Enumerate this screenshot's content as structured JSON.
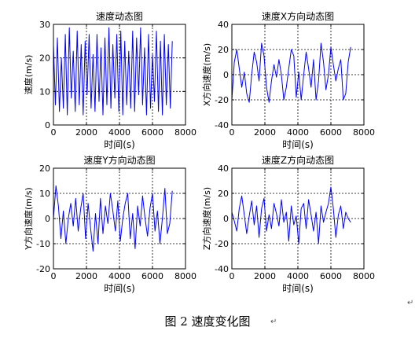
{
  "figure": {
    "caption": "图 2  速度变化图",
    "paragraph_mark": "↵"
  },
  "chart_data": [
    {
      "type": "line",
      "title": "速度动态图",
      "xlabel": "时间(s)",
      "ylabel": "速度(m/s)",
      "xlim": [
        0,
        8000
      ],
      "ylim": [
        0,
        30
      ],
      "xticks": [
        0,
        2000,
        4000,
        6000,
        8000
      ],
      "yticks": [
        0,
        10,
        20,
        30
      ],
      "grid": true,
      "color": "#0000ff",
      "series": [
        {
          "x": [
            0,
            120,
            240,
            360,
            480,
            600,
            720,
            840,
            960,
            1080,
            1200,
            1320,
            1440,
            1560,
            1680,
            1800,
            1920,
            2040,
            2160,
            2280,
            2400,
            2520,
            2640,
            2760,
            2880,
            3000,
            3120,
            3240,
            3360,
            3480,
            3600,
            3720,
            3840,
            3960,
            4080,
            4200,
            4320,
            4440,
            4560,
            4680,
            4800,
            4920,
            5040,
            5160,
            5280,
            5400,
            5520,
            5640,
            5760,
            5880,
            6000,
            6120,
            6240,
            6360,
            6480,
            6600,
            6720,
            6840,
            6960,
            7080,
            7200
          ],
          "y": [
            24,
            6,
            26,
            4,
            20,
            5,
            27,
            3,
            29,
            8,
            22,
            4,
            28,
            6,
            24,
            3,
            25,
            9,
            27,
            5,
            21,
            4,
            27,
            7,
            23,
            3,
            26,
            6,
            29,
            5,
            24,
            8,
            27,
            4,
            28,
            3,
            25,
            6,
            22,
            5,
            28,
            4,
            26,
            9,
            29,
            6,
            23,
            3,
            27,
            5,
            21,
            7,
            28,
            4,
            25,
            3,
            27,
            6,
            24,
            5,
            25
          ]
        }
      ]
    },
    {
      "type": "line",
      "title": "速度X方向动态图",
      "xlabel": "时间(s)",
      "ylabel": "X方向速度(m/s)",
      "xlim": [
        0,
        8000
      ],
      "ylim": [
        -40,
        40
      ],
      "xticks": [
        0,
        2000,
        4000,
        6000,
        8000
      ],
      "yticks": [
        -40,
        -20,
        0,
        20,
        40
      ],
      "grid": true,
      "color": "#0000ff",
      "series": [
        {
          "x": [
            0,
            150,
            300,
            450,
            600,
            750,
            900,
            1050,
            1200,
            1350,
            1500,
            1650,
            1800,
            1950,
            2100,
            2250,
            2400,
            2550,
            2700,
            2850,
            3000,
            3150,
            3300,
            3450,
            3600,
            3750,
            3900,
            4050,
            4200,
            4350,
            4500,
            4650,
            4800,
            4950,
            5100,
            5250,
            5400,
            5550,
            5700,
            5850,
            6000,
            6150,
            6300,
            6450,
            6600,
            6750,
            6900,
            7050,
            7200
          ],
          "y": [
            -20,
            10,
            20,
            5,
            -10,
            2,
            -15,
            -22,
            0,
            18,
            10,
            -5,
            25,
            15,
            -10,
            -22,
            -5,
            8,
            -2,
            12,
            0,
            -20,
            -10,
            5,
            20,
            15,
            -18,
            2,
            -20,
            0,
            18,
            5,
            -10,
            12,
            -20,
            -5,
            25,
            10,
            -12,
            0,
            22,
            8,
            -5,
            5,
            12,
            -20,
            -15,
            10,
            22
          ]
        }
      ]
    },
    {
      "type": "line",
      "title": "速度Y方向动态图",
      "xlabel": "时间(s)",
      "ylabel": "Y方向速度(m/s)",
      "xlim": [
        0,
        8000
      ],
      "ylim": [
        -20,
        20
      ],
      "xticks": [
        0,
        2000,
        4000,
        6000,
        8000
      ],
      "yticks": [
        -20,
        -10,
        0,
        10,
        20
      ],
      "grid": true,
      "color": "#0000ff",
      "series": [
        {
          "x": [
            0,
            150,
            300,
            450,
            600,
            750,
            900,
            1050,
            1200,
            1350,
            1500,
            1650,
            1800,
            1950,
            2100,
            2250,
            2400,
            2550,
            2700,
            2850,
            3000,
            3150,
            3300,
            3450,
            3600,
            3750,
            3900,
            4050,
            4200,
            4350,
            4500,
            4650,
            4800,
            4950,
            5100,
            5250,
            5400,
            5550,
            5700,
            5850,
            6000,
            6150,
            6300,
            6450,
            6600,
            6750,
            6900,
            7050,
            7200
          ],
          "y": [
            0,
            13,
            5,
            -8,
            3,
            -10,
            0,
            6,
            -3,
            8,
            -5,
            4,
            10,
            -8,
            6,
            -4,
            -13,
            2,
            -10,
            8,
            -6,
            5,
            -2,
            10,
            3,
            -5,
            7,
            -9,
            0,
            6,
            10,
            -8,
            2,
            -12,
            5,
            -3,
            9,
            0,
            -7,
            4,
            10,
            -5,
            3,
            -10,
            0,
            12,
            -6,
            -2,
            11
          ]
        }
      ]
    },
    {
      "type": "line",
      "title": "速度Z方向动态图",
      "xlabel": "时间(s)",
      "ylabel": "Z方向速度(m/s)",
      "xlim": [
        0,
        8000
      ],
      "ylim": [
        -40,
        40
      ],
      "xticks": [
        0,
        2000,
        4000,
        6000,
        8000
      ],
      "yticks": [
        -40,
        -20,
        0,
        20,
        40
      ],
      "grid": true,
      "color": "#0000ff",
      "series": [
        {
          "x": [
            0,
            150,
            300,
            450,
            600,
            750,
            900,
            1050,
            1200,
            1350,
            1500,
            1650,
            1800,
            1950,
            2100,
            2250,
            2400,
            2550,
            2700,
            2850,
            3000,
            3150,
            3300,
            3450,
            3600,
            3750,
            3900,
            4050,
            4200,
            4350,
            4500,
            4650,
            4800,
            4950,
            5100,
            5250,
            5400,
            5550,
            5700,
            5850,
            6000,
            6150,
            6300,
            6450,
            6600,
            6750,
            6900,
            7050,
            7200
          ],
          "y": [
            5,
            -2,
            -10,
            8,
            18,
            3,
            -12,
            2,
            14,
            -5,
            10,
            -15,
            8,
            16,
            -10,
            3,
            -8,
            12,
            4,
            -6,
            15,
            -3,
            5,
            -18,
            10,
            -5,
            2,
            -20,
            8,
            12,
            -8,
            15,
            3,
            -10,
            5,
            -20,
            10,
            -3,
            5,
            12,
            25,
            8,
            -15,
            3,
            10,
            -8,
            5,
            0,
            -3
          ]
        }
      ]
    }
  ]
}
